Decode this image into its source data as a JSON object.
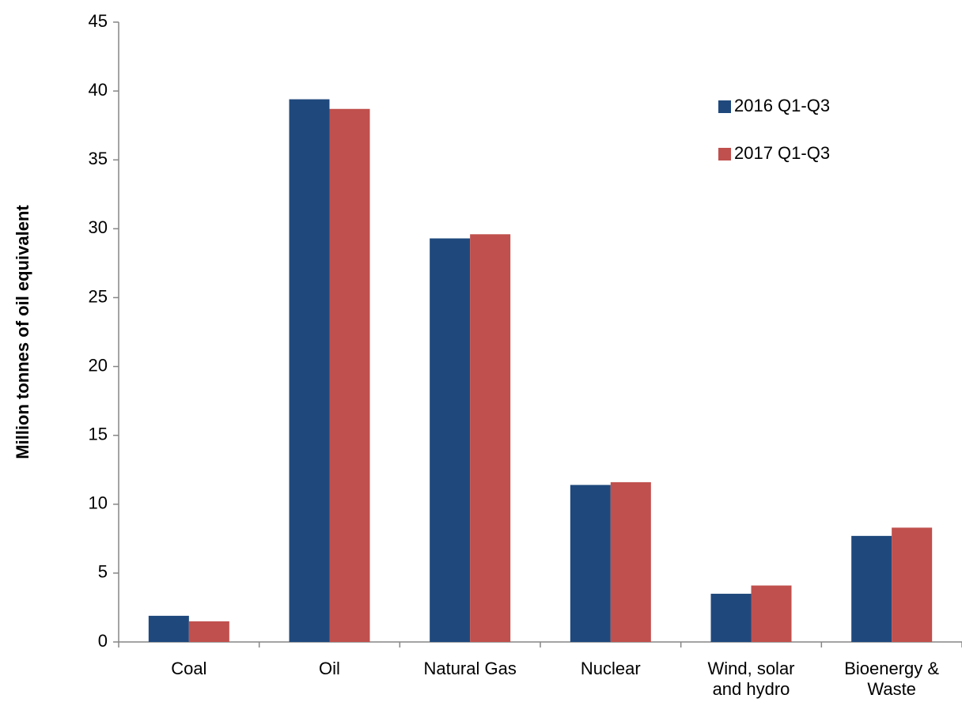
{
  "chart_data": {
    "type": "bar",
    "ylabel": "Million tonnes of oil equivalent",
    "categories": [
      "Coal",
      "Oil",
      "Natural Gas",
      "Nuclear",
      "Wind, solar and hydro",
      "Bioenergy & Waste"
    ],
    "series": [
      {
        "name": "2016 Q1-Q3",
        "color": "#1f497d",
        "values": [
          1.9,
          39.4,
          29.3,
          11.4,
          3.5,
          7.7
        ]
      },
      {
        "name": "2017 Q1-Q3",
        "color": "#c0504d",
        "values": [
          1.5,
          38.7,
          29.6,
          11.6,
          4.1,
          8.3
        ]
      }
    ],
    "ylim": [
      0,
      45
    ],
    "yticks": [
      0,
      5,
      10,
      15,
      20,
      25,
      30,
      35,
      40,
      45
    ],
    "legend": "upper right"
  }
}
